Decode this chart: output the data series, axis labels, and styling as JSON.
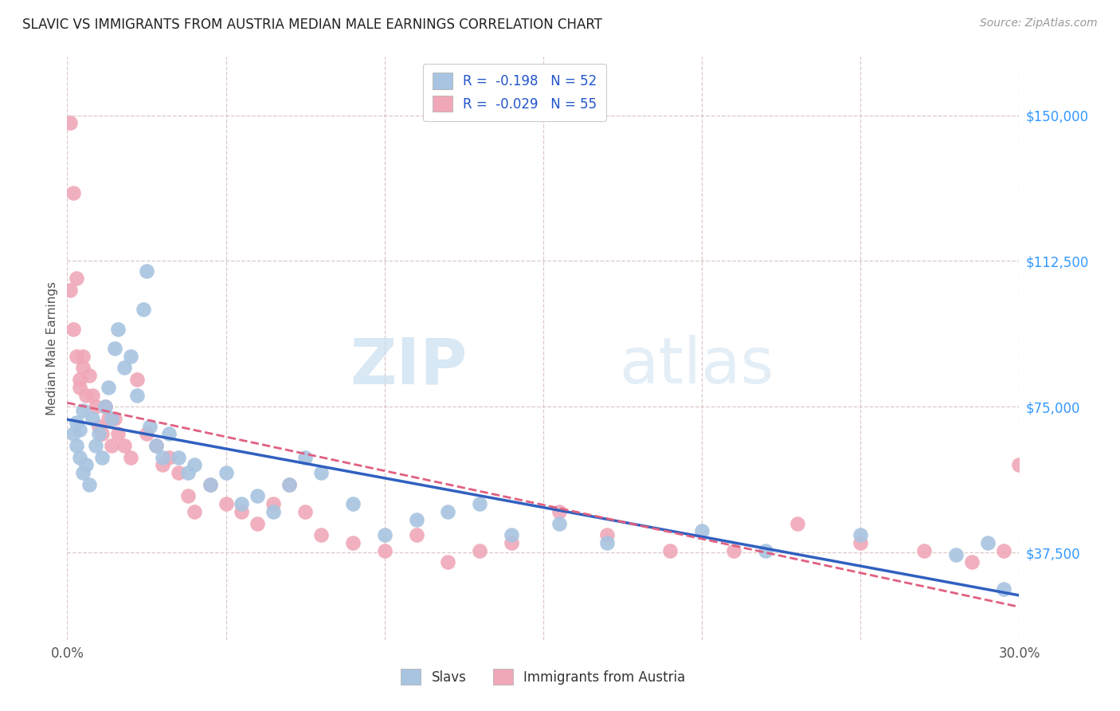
{
  "title": "SLAVIC VS IMMIGRANTS FROM AUSTRIA MEDIAN MALE EARNINGS CORRELATION CHART",
  "source": "Source: ZipAtlas.com",
  "ylabel": "Median Male Earnings",
  "xlim": [
    0.0,
    0.3
  ],
  "ylim": [
    15000,
    165000
  ],
  "yticks": [
    37500,
    75000,
    112500,
    150000
  ],
  "ytick_labels": [
    "$37,500",
    "$75,000",
    "$112,500",
    "$150,000"
  ],
  "xticks": [
    0.0,
    0.05,
    0.1,
    0.15,
    0.2,
    0.25,
    0.3
  ],
  "xtick_labels": [
    "0.0%",
    "",
    "",
    "",
    "",
    "",
    "30.0%"
  ],
  "blue_color": "#a8c4e0",
  "pink_color": "#f0a8b8",
  "blue_line_color": "#3060c0",
  "pink_line_color": "#e06080",
  "legend_r_blue": "R =  -0.198",
  "legend_n_blue": "N = 52",
  "legend_r_pink": "R =  -0.029",
  "legend_n_pink": "N = 55",
  "watermark_zip": "ZIP",
  "watermark_atlas": "atlas",
  "background_color": "#ffffff",
  "grid_color": "#ddc8c8",
  "slavs_x": [
    0.002,
    0.003,
    0.004,
    0.003,
    0.005,
    0.004,
    0.006,
    0.007,
    0.005,
    0.008,
    0.009,
    0.01,
    0.012,
    0.011,
    0.013,
    0.015,
    0.014,
    0.016,
    0.018,
    0.02,
    0.022,
    0.025,
    0.024,
    0.026,
    0.028,
    0.03,
    0.032,
    0.035,
    0.038,
    0.04,
    0.045,
    0.05,
    0.055,
    0.06,
    0.065,
    0.07,
    0.075,
    0.08,
    0.09,
    0.1,
    0.11,
    0.12,
    0.13,
    0.14,
    0.155,
    0.17,
    0.2,
    0.22,
    0.25,
    0.28,
    0.29,
    0.295
  ],
  "slavs_y": [
    68000,
    65000,
    62000,
    71000,
    58000,
    69000,
    60000,
    55000,
    74000,
    72000,
    65000,
    68000,
    75000,
    62000,
    80000,
    90000,
    72000,
    95000,
    85000,
    88000,
    78000,
    110000,
    100000,
    70000,
    65000,
    62000,
    68000,
    62000,
    58000,
    60000,
    55000,
    58000,
    50000,
    52000,
    48000,
    55000,
    62000,
    58000,
    50000,
    42000,
    46000,
    48000,
    50000,
    42000,
    45000,
    40000,
    43000,
    38000,
    42000,
    37000,
    40000,
    28000
  ],
  "austria_x": [
    0.001,
    0.002,
    0.001,
    0.003,
    0.002,
    0.004,
    0.003,
    0.005,
    0.004,
    0.006,
    0.005,
    0.007,
    0.008,
    0.009,
    0.01,
    0.012,
    0.011,
    0.013,
    0.015,
    0.014,
    0.016,
    0.018,
    0.02,
    0.022,
    0.025,
    0.028,
    0.03,
    0.032,
    0.035,
    0.038,
    0.04,
    0.045,
    0.05,
    0.055,
    0.06,
    0.065,
    0.07,
    0.075,
    0.08,
    0.09,
    0.1,
    0.11,
    0.12,
    0.13,
    0.14,
    0.155,
    0.17,
    0.19,
    0.21,
    0.23,
    0.25,
    0.27,
    0.285,
    0.295,
    0.3
  ],
  "austria_y": [
    148000,
    130000,
    105000,
    108000,
    95000,
    80000,
    88000,
    88000,
    82000,
    78000,
    85000,
    83000,
    78000,
    75000,
    70000,
    75000,
    68000,
    72000,
    72000,
    65000,
    68000,
    65000,
    62000,
    82000,
    68000,
    65000,
    60000,
    62000,
    58000,
    52000,
    48000,
    55000,
    50000,
    48000,
    45000,
    50000,
    55000,
    48000,
    42000,
    40000,
    38000,
    42000,
    35000,
    38000,
    40000,
    48000,
    42000,
    38000,
    38000,
    45000,
    40000,
    38000,
    35000,
    38000,
    60000
  ]
}
